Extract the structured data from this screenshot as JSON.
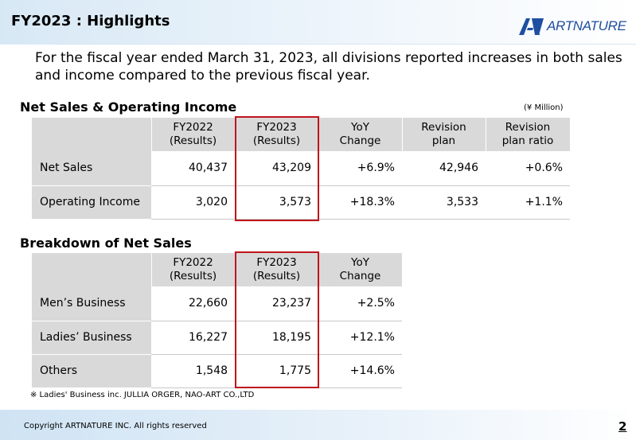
{
  "header": {
    "title": "FY2023 : Highlights",
    "logo_text": "ARTNATURE"
  },
  "intro": "For the fiscal year ended March 31, 2023, all divisions reported increases in both sales and income compared to the previous fiscal year.",
  "section1": {
    "title": "Net Sales & Operating Income",
    "unit": "(¥ Million)",
    "headers": [
      [
        "FY2022",
        "(Results)"
      ],
      [
        "FY2023",
        "(Results)"
      ],
      [
        "YoY",
        "Change"
      ],
      [
        "Revision",
        "plan"
      ],
      [
        "Revision",
        "plan ratio"
      ]
    ],
    "rows": [
      {
        "label": "Net Sales",
        "values": [
          "40,437",
          "43,209",
          "+6.9%",
          "42,946",
          "+0.6%"
        ]
      },
      {
        "label": "Operating Income",
        "values": [
          "3,020",
          "3,573",
          "+18.3%",
          "3,533",
          "+1.1%"
        ]
      }
    ]
  },
  "section2": {
    "title": "Breakdown of Net Sales",
    "headers": [
      [
        "FY2022",
        "(Results)"
      ],
      [
        "FY2023",
        "(Results)"
      ],
      [
        "YoY",
        "Change"
      ]
    ],
    "rows": [
      {
        "label": "Men’s Business",
        "values": [
          "22,660",
          "23,237",
          "+2.5%"
        ]
      },
      {
        "label": "Ladies’ Business",
        "values": [
          "16,227",
          "18,195",
          "+12.1%"
        ]
      },
      {
        "label": "Others",
        "values": [
          "1,548",
          "1,775",
          "+14.6%"
        ]
      }
    ]
  },
  "footnote": "※ Ladies' Business inc. JULLIA ORGER, NAO-ART CO.,LTD",
  "footer": {
    "copyright": "Copyright ARTNATURE INC. All rights reserved",
    "page": "2"
  }
}
